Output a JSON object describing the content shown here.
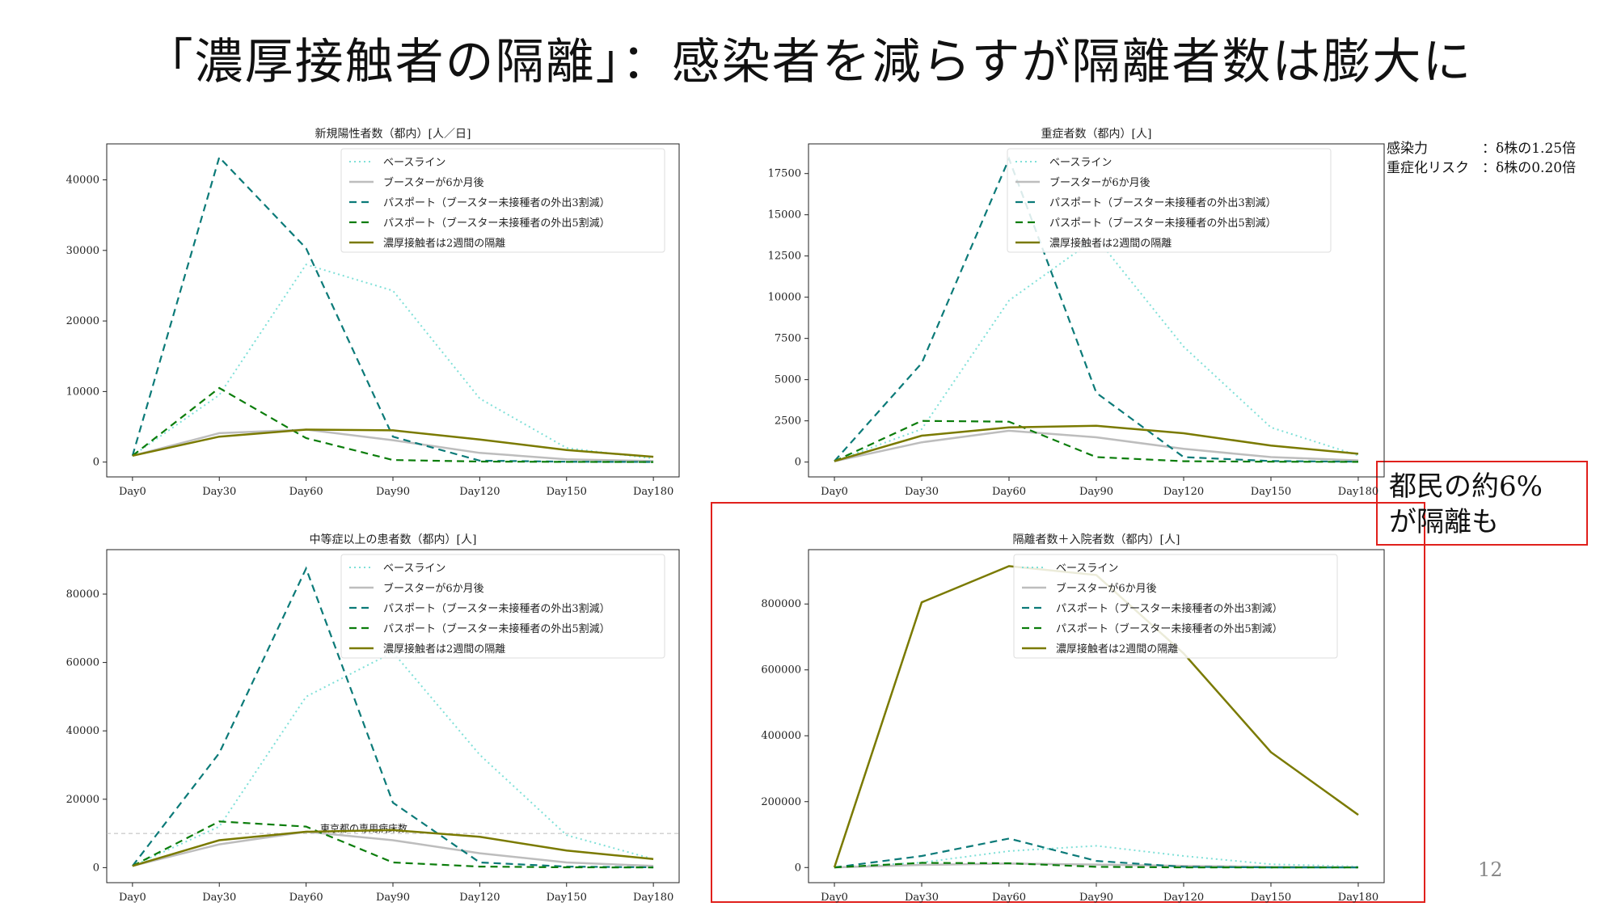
{
  "slide": {
    "title": "「濃厚接触者の隔離」：感染者を減らすが隔離者数は膨大に",
    "page_number": "12",
    "note": [
      "都民の約6%",
      "が隔離も"
    ],
    "params": [
      {
        "label": "感染力",
        "value": "：δ株の1.25倍"
      },
      {
        "label": "重症化リスク",
        "value": "：δ株の0.20倍"
      }
    ]
  },
  "legend_labels": [
    "ベースライン",
    "ブースターが6か月後",
    "パスポート（ブースター未接種者の外出3割減）",
    "パスポート（ブースター未接種者の外出5割減）",
    "濃厚接触者は2週間の隔離"
  ],
  "series_styles": [
    {
      "color": "#7fe0d8",
      "dash": "2,4",
      "width": 2
    },
    {
      "color": "#bdbdbd",
      "dash": "",
      "width": 2.5
    },
    {
      "color": "#0b7a78",
      "dash": "9,6",
      "width": 2.2
    },
    {
      "color": "#0b7d0b",
      "dash": "9,6",
      "width": 2.2
    },
    {
      "color": "#7a7a00",
      "dash": "",
      "width": 2.5
    }
  ],
  "chart_data": [
    {
      "type": "line",
      "title": "新規陽性者数（都内）[人／日]",
      "categories": [
        "Day0",
        "Day30",
        "Day60",
        "Day90",
        "Day120",
        "Day150",
        "Day180"
      ],
      "yticks": [
        0,
        10000,
        20000,
        30000,
        40000
      ],
      "ylim": [
        -2100,
        45100
      ],
      "series": [
        {
          "name": "ベースライン",
          "values": [
            900,
            9500,
            28000,
            24300,
            9000,
            2000,
            500
          ]
        },
        {
          "name": "ブースターが6か月後",
          "values": [
            900,
            4100,
            4600,
            3100,
            1300,
            400,
            150
          ]
        },
        {
          "name": "パスポート（ブースター未接種者の外出3割減）",
          "values": [
            900,
            43200,
            30300,
            3600,
            200,
            50,
            20
          ]
        },
        {
          "name": "パスポート（ブースター未接種者の外出5割減）",
          "values": [
            900,
            10500,
            3400,
            300,
            80,
            30,
            10
          ]
        },
        {
          "name": "濃厚接触者は2週間の隔離",
          "values": [
            900,
            3600,
            4600,
            4500,
            3200,
            1700,
            750
          ]
        }
      ]
    },
    {
      "type": "line",
      "title": "重症者数（都内）[人]",
      "categories": [
        "Day0",
        "Day30",
        "Day60",
        "Day90",
        "Day120",
        "Day150",
        "Day180"
      ],
      "yticks": [
        0,
        2500,
        5000,
        7500,
        10000,
        12500,
        15000,
        17500
      ],
      "ylim": [
        -900,
        19300
      ],
      "series": [
        {
          "name": "ベースライン",
          "values": [
            50,
            2000,
            9800,
            13600,
            7000,
            2100,
            400
          ]
        },
        {
          "name": "ブースターが6か月後",
          "values": [
            50,
            1200,
            1900,
            1500,
            800,
            300,
            100
          ]
        },
        {
          "name": "パスポート（ブースター未接種者の外出3割減）",
          "values": [
            50,
            6000,
            18400,
            4200,
            300,
            60,
            20
          ]
        },
        {
          "name": "パスポート（ブースター未接種者の外出5割減）",
          "values": [
            50,
            2500,
            2450,
            300,
            50,
            20,
            10
          ]
        },
        {
          "name": "濃厚接触者は2週間の隔離",
          "values": [
            50,
            1600,
            2100,
            2200,
            1750,
            1000,
            500
          ]
        }
      ]
    },
    {
      "type": "line",
      "title": "中等症以上の患者数（都内）[人]",
      "categories": [
        "Day0",
        "Day30",
        "Day60",
        "Day90",
        "Day120",
        "Day150",
        "Day180"
      ],
      "yticks": [
        0,
        20000,
        40000,
        60000,
        80000
      ],
      "ylim": [
        -4400,
        93000
      ],
      "series": [
        {
          "name": "ベースライン",
          "values": [
            500,
            12000,
            50000,
            63000,
            33000,
            9500,
            2500
          ]
        },
        {
          "name": "ブースターが6か月後",
          "values": [
            500,
            6800,
            10500,
            8000,
            4200,
            1500,
            500
          ]
        },
        {
          "name": "パスポート（ブースター未接種者の外出3割減）",
          "values": [
            500,
            33500,
            87500,
            19000,
            1500,
            300,
            100
          ]
        },
        {
          "name": "パスポート（ブースター未接種者の外出5割減）",
          "values": [
            500,
            13500,
            12000,
            1500,
            300,
            100,
            50
          ]
        },
        {
          "name": "濃厚接触者は2週間の隔離",
          "values": [
            500,
            8000,
            10500,
            11000,
            9000,
            5000,
            2500
          ]
        }
      ],
      "reference_line": {
        "value": 10000,
        "label": "東京都の専用病床数"
      }
    },
    {
      "type": "line",
      "title": "隔離者数＋入院者数（都内）[人]",
      "categories": [
        "Day0",
        "Day30",
        "Day60",
        "Day90",
        "Day120",
        "Day150",
        "Day180"
      ],
      "yticks": [
        0,
        200000,
        400000,
        600000,
        800000
      ],
      "ylim": [
        -46000,
        965000
      ],
      "series": [
        {
          "name": "ベースライン",
          "values": [
            500,
            15000,
            50000,
            66000,
            35000,
            10000,
            3000
          ]
        },
        {
          "name": "ブースターが6か月後",
          "values": [
            500,
            8000,
            12000,
            9000,
            5000,
            2000,
            800
          ]
        },
        {
          "name": "パスポート（ブースター未接種者の外出3割減）",
          "values": [
            500,
            35000,
            88000,
            20000,
            2000,
            400,
            100
          ]
        },
        {
          "name": "パスポート（ブースター未接種者の外出5割減）",
          "values": [
            500,
            14000,
            13000,
            2000,
            300,
            100,
            50
          ]
        },
        {
          "name": "濃厚接触者は2週間の隔離",
          "values": [
            500,
            805000,
            915000,
            888000,
            650000,
            350000,
            160000
          ]
        }
      ]
    }
  ]
}
